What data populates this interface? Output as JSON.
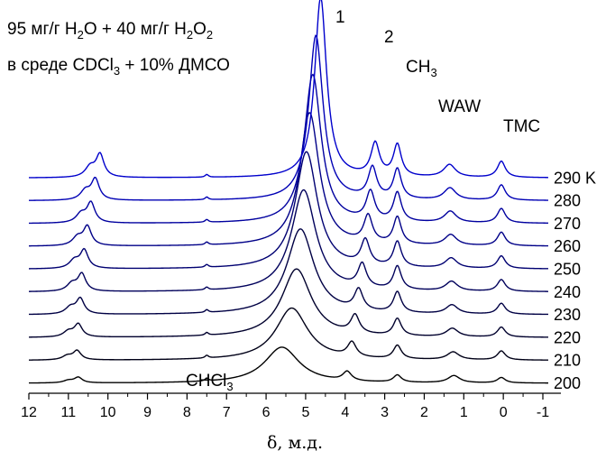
{
  "chart_data": {
    "type": "line",
    "title_line1": {
      "a": "95 мг/г H",
      "s1": "2",
      "b": "O + 40 мг/г H",
      "s2": "2",
      "c": "O",
      "s3": "2"
    },
    "title_line2": {
      "a": "в среде CDCl",
      "s1": "3",
      "b": " + 10% ДМСО"
    },
    "xlabel": "δ, м.д.",
    "xlim": [
      12,
      -1
    ],
    "x_ticks": [
      "12",
      "11",
      "10",
      "9",
      "8",
      "7",
      "6",
      "5",
      "4",
      "3",
      "2",
      "1",
      "0",
      "-1"
    ],
    "x_tick_values": [
      12,
      11,
      10,
      9,
      8,
      7,
      6,
      5,
      4,
      3,
      2,
      1,
      0,
      -1
    ],
    "annotations": {
      "peak1": "1",
      "peak2": "2",
      "ch3": {
        "a": "CH",
        "s": "3"
      },
      "waw": "WAW",
      "tmc": "TMC",
      "chcl3": {
        "a": "CHCl",
        "s": "3"
      }
    },
    "unit_suffix": "K",
    "colors": {
      "hot": "#0000cc",
      "cold": "#000000"
    },
    "series": [
      {
        "name": "200",
        "temp": 200,
        "peak_h": 10.75,
        "peak_w": 6,
        "water_h": 5.6,
        "water_w": 40,
        "h2_h": 3.95,
        "h2_w": 10,
        "ch3_w": 8,
        "waw_h": 1.25,
        "tmc_w": 6
      },
      {
        "name": "210",
        "temp": 210,
        "peak_h": 10.78,
        "peak_w": 10,
        "water_h": 5.35,
        "water_w": 58,
        "h2_h": 3.83,
        "h2_w": 16,
        "ch3_w": 15,
        "waw_h": 1.27,
        "tmc_w": 10
      },
      {
        "name": "220",
        "temp": 220,
        "peak_h": 10.75,
        "peak_w": 14,
        "water_h": 5.23,
        "water_w": 76,
        "h2_h": 3.75,
        "h2_w": 20,
        "ch3_w": 19,
        "waw_h": 1.29,
        "tmc_w": 11
      },
      {
        "name": "230",
        "temp": 230,
        "peak_h": 10.7,
        "peak_w": 17,
        "water_h": 5.13,
        "water_w": 95,
        "h2_h": 3.66,
        "h2_w": 23,
        "ch3_w": 23,
        "waw_h": 1.3,
        "tmc_w": 12
      },
      {
        "name": "240",
        "temp": 240,
        "peak_h": 10.66,
        "peak_w": 19,
        "water_h": 5.05,
        "water_w": 113,
        "h2_h": 3.57,
        "h2_w": 26,
        "ch3_w": 26,
        "waw_h": 1.31,
        "tmc_w": 13
      },
      {
        "name": "250",
        "temp": 250,
        "peak_h": 10.6,
        "peak_w": 20,
        "water_h": 4.98,
        "water_w": 130,
        "h2_h": 3.49,
        "h2_w": 28,
        "ch3_w": 28,
        "waw_h": 1.32,
        "tmc_w": 14
      },
      {
        "name": "260",
        "temp": 260,
        "peak_h": 10.52,
        "peak_w": 21,
        "water_h": 4.9,
        "water_w": 148,
        "h2_h": 3.42,
        "h2_w": 30,
        "ch3_w": 30,
        "waw_h": 1.33,
        "tmc_w": 15
      },
      {
        "name": "270",
        "temp": 270,
        "peak_h": 10.43,
        "peak_w": 22,
        "water_h": 4.82,
        "water_w": 165,
        "h2_h": 3.36,
        "h2_w": 32,
        "ch3_w": 32,
        "waw_h": 1.34,
        "tmc_w": 16
      },
      {
        "name": "280",
        "temp": 280,
        "peak_h": 10.32,
        "peak_w": 23,
        "water_h": 4.74,
        "water_w": 183,
        "h2_h": 3.31,
        "h2_w": 34,
        "ch3_w": 33,
        "waw_h": 1.35,
        "tmc_w": 17
      },
      {
        "name": "290",
        "temp": 290,
        "peak_h": 10.2,
        "peak_w": 25,
        "water_h": 4.62,
        "water_w": 200,
        "h2_h": 3.24,
        "h2_w": 36,
        "ch3_w": 35,
        "waw_h": 1.36,
        "tmc_w": 18
      }
    ]
  }
}
